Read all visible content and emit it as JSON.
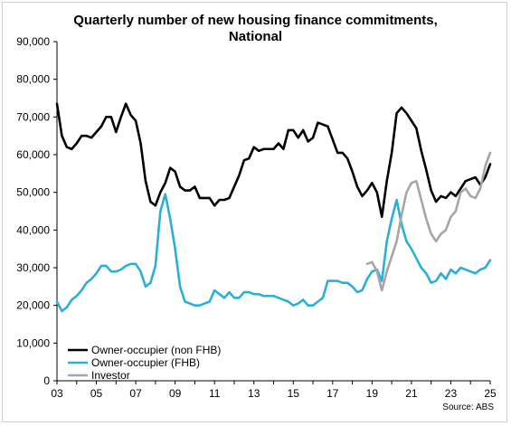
{
  "chart_data": {
    "type": "line",
    "title_lines": [
      "Quarterly number of new housing finance commitments,",
      "National"
    ],
    "source": "Source: ABS",
    "ylim": [
      0,
      90000
    ],
    "y_ticks": [
      "0",
      "10,000",
      "20,000",
      "30,000",
      "40,000",
      "50,000",
      "60,000",
      "70,000",
      "80,000",
      "90,000"
    ],
    "y_tick_values": [
      0,
      10000,
      20000,
      30000,
      40000,
      50000,
      60000,
      70000,
      80000,
      90000
    ],
    "xlim": [
      2003.0,
      2025.0
    ],
    "x_ticks": [
      "03",
      "05",
      "07",
      "09",
      "11",
      "13",
      "15",
      "17",
      "19",
      "21",
      "23",
      "25"
    ],
    "x_tick_values": [
      2003,
      2005,
      2007,
      2009,
      2011,
      2013,
      2015,
      2017,
      2019,
      2021,
      2023,
      2025
    ],
    "legend_position": "bottom-left",
    "grid": false,
    "series": [
      {
        "name": "Owner-occupier (non FHB)",
        "color": "#000000",
        "points": [
          [
            2003.0,
            73500
          ],
          [
            2003.25,
            65000
          ],
          [
            2003.5,
            62000
          ],
          [
            2003.75,
            61500
          ],
          [
            2004.0,
            63000
          ],
          [
            2004.25,
            65000
          ],
          [
            2004.5,
            65000
          ],
          [
            2004.75,
            64500
          ],
          [
            2005.0,
            66000
          ],
          [
            2005.25,
            67500
          ],
          [
            2005.5,
            70000
          ],
          [
            2005.75,
            70000
          ],
          [
            2006.0,
            66000
          ],
          [
            2006.25,
            70000
          ],
          [
            2006.5,
            73500
          ],
          [
            2006.75,
            70500
          ],
          [
            2007.0,
            69000
          ],
          [
            2007.25,
            63000
          ],
          [
            2007.5,
            53000
          ],
          [
            2007.75,
            47500
          ],
          [
            2008.0,
            46500
          ],
          [
            2008.25,
            50000
          ],
          [
            2008.5,
            52500
          ],
          [
            2008.75,
            56500
          ],
          [
            2009.0,
            55500
          ],
          [
            2009.25,
            51500
          ],
          [
            2009.5,
            50500
          ],
          [
            2009.75,
            50500
          ],
          [
            2010.0,
            51500
          ],
          [
            2010.25,
            48500
          ],
          [
            2010.5,
            48500
          ],
          [
            2010.75,
            48500
          ],
          [
            2011.0,
            46500
          ],
          [
            2011.25,
            48000
          ],
          [
            2011.5,
            48000
          ],
          [
            2011.75,
            48500
          ],
          [
            2012.0,
            51500
          ],
          [
            2012.25,
            54500
          ],
          [
            2012.5,
            58500
          ],
          [
            2012.75,
            59000
          ],
          [
            2013.0,
            62000
          ],
          [
            2013.25,
            61000
          ],
          [
            2013.5,
            61500
          ],
          [
            2013.75,
            61500
          ],
          [
            2014.0,
            61500
          ],
          [
            2014.25,
            63000
          ],
          [
            2014.5,
            61500
          ],
          [
            2014.75,
            66500
          ],
          [
            2015.0,
            66500
          ],
          [
            2015.25,
            64500
          ],
          [
            2015.5,
            66500
          ],
          [
            2015.75,
            63500
          ],
          [
            2016.0,
            64500
          ],
          [
            2016.25,
            68500
          ],
          [
            2016.5,
            68000
          ],
          [
            2016.75,
            67500
          ],
          [
            2017.0,
            64000
          ],
          [
            2017.25,
            60500
          ],
          [
            2017.5,
            60500
          ],
          [
            2017.75,
            59000
          ],
          [
            2018.0,
            55500
          ],
          [
            2018.25,
            51500
          ],
          [
            2018.5,
            49000
          ],
          [
            2018.75,
            50500
          ],
          [
            2019.0,
            52500
          ],
          [
            2019.25,
            50000
          ],
          [
            2019.5,
            43500
          ],
          [
            2019.75,
            53000
          ],
          [
            2020.0,
            60500
          ],
          [
            2020.25,
            71000
          ],
          [
            2020.5,
            72500
          ],
          [
            2020.75,
            71000
          ],
          [
            2021.0,
            69000
          ],
          [
            2021.25,
            67000
          ],
          [
            2021.5,
            61000
          ],
          [
            2021.75,
            56000
          ],
          [
            2022.0,
            50500
          ],
          [
            2022.25,
            47500
          ],
          [
            2022.5,
            49000
          ],
          [
            2022.75,
            48500
          ],
          [
            2023.0,
            50000
          ],
          [
            2023.25,
            49000
          ],
          [
            2023.5,
            51000
          ],
          [
            2023.75,
            53000
          ],
          [
            2024.0,
            53500
          ],
          [
            2024.25,
            54000
          ],
          [
            2024.5,
            52000
          ],
          [
            2024.75,
            54000
          ],
          [
            2025.0,
            57500
          ]
        ]
      },
      {
        "name": "Owner-occupier (FHB)",
        "color": "#2ab0d6",
        "points": [
          [
            2003.0,
            21000
          ],
          [
            2003.25,
            18500
          ],
          [
            2003.5,
            19500
          ],
          [
            2003.75,
            21500
          ],
          [
            2004.0,
            22500
          ],
          [
            2004.25,
            24000
          ],
          [
            2004.5,
            26000
          ],
          [
            2004.75,
            27000
          ],
          [
            2005.0,
            28500
          ],
          [
            2005.25,
            30500
          ],
          [
            2005.5,
            30500
          ],
          [
            2005.75,
            29000
          ],
          [
            2006.0,
            29000
          ],
          [
            2006.25,
            29500
          ],
          [
            2006.5,
            30500
          ],
          [
            2006.75,
            31000
          ],
          [
            2007.0,
            31000
          ],
          [
            2007.25,
            29000
          ],
          [
            2007.5,
            25000
          ],
          [
            2007.75,
            26000
          ],
          [
            2008.0,
            30500
          ],
          [
            2008.25,
            45000
          ],
          [
            2008.5,
            49500
          ],
          [
            2008.75,
            43000
          ],
          [
            2009.0,
            35000
          ],
          [
            2009.25,
            25000
          ],
          [
            2009.5,
            21000
          ],
          [
            2009.75,
            20500
          ],
          [
            2010.0,
            20000
          ],
          [
            2010.25,
            20000
          ],
          [
            2010.5,
            20500
          ],
          [
            2010.75,
            21000
          ],
          [
            2011.0,
            24000
          ],
          [
            2011.25,
            23000
          ],
          [
            2011.5,
            22000
          ],
          [
            2011.75,
            23500
          ],
          [
            2012.0,
            22000
          ],
          [
            2012.25,
            22000
          ],
          [
            2012.5,
            23500
          ],
          [
            2012.75,
            23500
          ],
          [
            2013.0,
            23000
          ],
          [
            2013.25,
            23000
          ],
          [
            2013.5,
            22500
          ],
          [
            2013.75,
            22500
          ],
          [
            2014.0,
            22500
          ],
          [
            2014.25,
            22000
          ],
          [
            2014.5,
            21500
          ],
          [
            2014.75,
            21000
          ],
          [
            2015.0,
            20000
          ],
          [
            2015.25,
            20500
          ],
          [
            2015.5,
            21500
          ],
          [
            2015.75,
            20000
          ],
          [
            2016.0,
            20000
          ],
          [
            2016.25,
            21000
          ],
          [
            2016.5,
            22000
          ],
          [
            2016.75,
            26500
          ],
          [
            2017.0,
            26500
          ],
          [
            2017.25,
            26500
          ],
          [
            2017.5,
            26000
          ],
          [
            2017.75,
            26000
          ],
          [
            2018.0,
            25000
          ],
          [
            2018.25,
            23500
          ],
          [
            2018.5,
            24000
          ],
          [
            2018.75,
            27000
          ],
          [
            2019.0,
            29000
          ],
          [
            2019.25,
            29500
          ],
          [
            2019.5,
            26500
          ],
          [
            2019.75,
            37000
          ],
          [
            2020.0,
            43000
          ],
          [
            2020.25,
            48000
          ],
          [
            2020.5,
            41500
          ],
          [
            2020.75,
            37000
          ],
          [
            2021.0,
            35000
          ],
          [
            2021.25,
            32500
          ],
          [
            2021.5,
            30000
          ],
          [
            2021.75,
            28500
          ],
          [
            2022.0,
            26000
          ],
          [
            2022.25,
            26500
          ],
          [
            2022.5,
            28500
          ],
          [
            2022.75,
            27000
          ],
          [
            2023.0,
            29500
          ],
          [
            2023.25,
            28500
          ],
          [
            2023.5,
            30000
          ],
          [
            2023.75,
            29500
          ],
          [
            2024.0,
            29000
          ],
          [
            2024.25,
            28500
          ],
          [
            2024.5,
            29500
          ],
          [
            2024.75,
            30000
          ],
          [
            2025.0,
            32000
          ]
        ]
      },
      {
        "name": "Investor",
        "color": "#a6a6a6",
        "points": [
          [
            2018.75,
            31000
          ],
          [
            2019.0,
            31500
          ],
          [
            2019.25,
            29000
          ],
          [
            2019.5,
            24000
          ],
          [
            2019.75,
            29000
          ],
          [
            2020.0,
            33000
          ],
          [
            2020.25,
            37000
          ],
          [
            2020.5,
            44000
          ],
          [
            2020.75,
            50000
          ],
          [
            2021.0,
            52500
          ],
          [
            2021.25,
            53000
          ],
          [
            2021.5,
            48000
          ],
          [
            2021.75,
            43000
          ],
          [
            2022.0,
            39000
          ],
          [
            2022.25,
            37000
          ],
          [
            2022.5,
            39000
          ],
          [
            2022.75,
            40000
          ],
          [
            2023.0,
            43500
          ],
          [
            2023.25,
            45000
          ],
          [
            2023.5,
            50000
          ],
          [
            2023.75,
            51000
          ],
          [
            2024.0,
            49000
          ],
          [
            2024.25,
            48500
          ],
          [
            2024.5,
            51000
          ],
          [
            2024.75,
            57000
          ],
          [
            2025.0,
            60500
          ]
        ]
      }
    ]
  }
}
